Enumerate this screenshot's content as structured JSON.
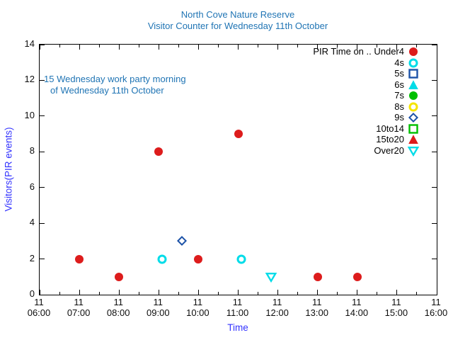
{
  "colors": {
    "heading_blue": "#1f74b4",
    "axis_label_blue": "#3333ff",
    "axis_black": "#000000",
    "marker_red": "#dd1c1c",
    "marker_cyan": "#00dce8",
    "marker_blue": "#1d53a8",
    "marker_green": "#00bf00",
    "marker_yellow": "#f5e400"
  },
  "chart_data": {
    "type": "scatter",
    "title": "North Cove Nature Reserve",
    "subtitle": "Visitor Counter for Wednesday 11th October",
    "xlabel": "Time",
    "ylabel": "Visitors(PIR events)",
    "grid": false,
    "legend_position": "top-right-inside",
    "x_axis": {
      "min_hour": 6,
      "max_hour": 16,
      "tick_date_label": "11",
      "major_tick_times": [
        "06:00",
        "07:00",
        "08:00",
        "09:00",
        "10:00",
        "11:00",
        "12:00",
        "13:00",
        "14:00",
        "15:00",
        "16:00"
      ],
      "minor_tick_interval_minutes": 30
    },
    "y_axis": {
      "min": 0,
      "max": 14,
      "tick_step": 2,
      "tick_values": [
        0,
        2,
        4,
        6,
        8,
        10,
        12,
        14
      ]
    },
    "annotation": {
      "lines": [
        "15 Wednesday work party morning",
        "of Wednesday 11th October"
      ],
      "anchor_y_value": 12
    },
    "series": [
      {
        "name": "Under4",
        "label": "PIR Time on .. Under4",
        "marker": "circle-filled",
        "color": "#dd1c1c",
        "points": [
          {
            "time": "07:00",
            "value": 2
          },
          {
            "time": "08:00",
            "value": 1
          },
          {
            "time": "09:00",
            "value": 8
          },
          {
            "time": "10:00",
            "value": 2
          },
          {
            "time": "11:00",
            "value": 9
          },
          {
            "time": "13:00",
            "value": 1
          },
          {
            "time": "14:00",
            "value": 1
          }
        ]
      },
      {
        "name": "4s",
        "label": "4s",
        "marker": "circle-open",
        "color": "#00dce8",
        "points": [
          {
            "time": "09:05",
            "value": 2
          },
          {
            "time": "11:05",
            "value": 2
          }
        ]
      },
      {
        "name": "5s",
        "label": "5s",
        "marker": "square-open",
        "color": "#1d53a8",
        "points": []
      },
      {
        "name": "6s",
        "label": "6s",
        "marker": "triangle-up-filled",
        "color": "#00dce8",
        "points": []
      },
      {
        "name": "7s",
        "label": "7s",
        "marker": "circle-filled",
        "color": "#00bf00",
        "points": []
      },
      {
        "name": "8s",
        "label": "8s",
        "marker": "circle-open",
        "color": "#f5e400",
        "points": []
      },
      {
        "name": "9s",
        "label": "9s",
        "marker": "diamond-open",
        "color": "#1d53a8",
        "points": [
          {
            "time": "09:35",
            "value": 3
          }
        ]
      },
      {
        "name": "10to14",
        "label": "10to14",
        "marker": "square-open",
        "color": "#00bf00",
        "points": []
      },
      {
        "name": "15to20",
        "label": "15to20",
        "marker": "triangle-up-filled",
        "color": "#dd1c1c",
        "points": []
      },
      {
        "name": "Over20",
        "label": "Over20",
        "marker": "triangle-down-open",
        "color": "#00dce8",
        "points": [
          {
            "time": "11:50",
            "value": 1
          }
        ]
      }
    ]
  }
}
